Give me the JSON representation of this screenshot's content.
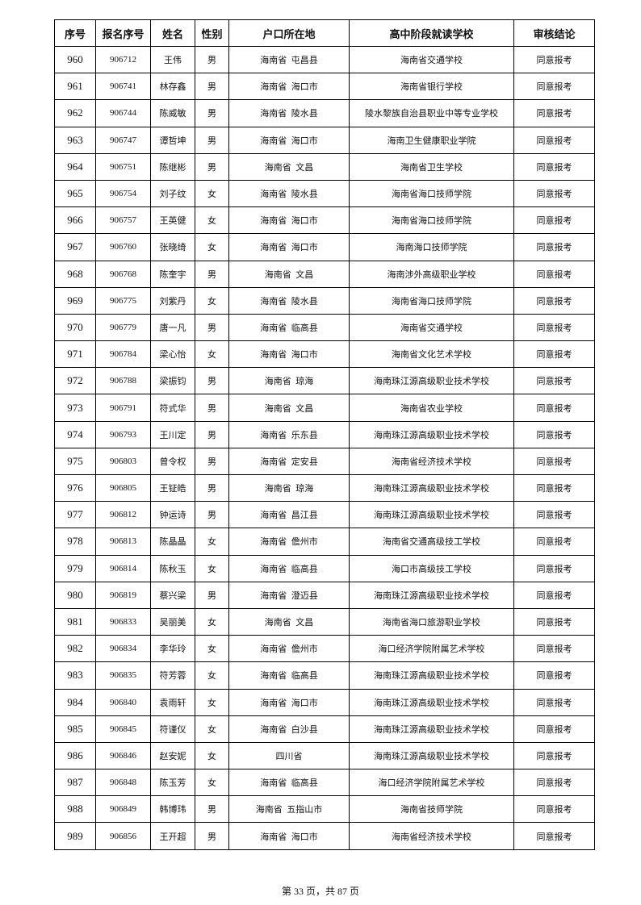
{
  "table": {
    "headers": [
      "序号",
      "报名序号",
      "姓名",
      "性别",
      "户口所在地",
      "高中阶段就读学校",
      "审核结论"
    ],
    "rows": [
      [
        "960",
        "906712",
        "王伟",
        "男",
        "海南省  屯昌县",
        "海南省交通学校",
        "同意报考"
      ],
      [
        "961",
        "906741",
        "林存鑫",
        "男",
        "海南省  海口市",
        "海南省银行学校",
        "同意报考"
      ],
      [
        "962",
        "906744",
        "陈威敏",
        "男",
        "海南省  陵水县",
        "陵水黎族自治县职业中等专业学校",
        "同意报考"
      ],
      [
        "963",
        "906747",
        "谭哲坤",
        "男",
        "海南省  海口市",
        "海南卫生健康职业学院",
        "同意报考"
      ],
      [
        "964",
        "906751",
        "陈继彬",
        "男",
        "海南省  文昌",
        "海南省卫生学校",
        "同意报考"
      ],
      [
        "965",
        "906754",
        "刘子纹",
        "女",
        "海南省  陵水县",
        "海南省海口技师学院",
        "同意报考"
      ],
      [
        "966",
        "906757",
        "王英健",
        "女",
        "海南省  海口市",
        "海南省海口技师学院",
        "同意报考"
      ],
      [
        "967",
        "906760",
        "张晓绮",
        "女",
        "海南省  海口市",
        "海南海口技师学院",
        "同意报考"
      ],
      [
        "968",
        "906768",
        "陈奎宇",
        "男",
        "海南省  文昌",
        "海南涉外高级职业学校",
        "同意报考"
      ],
      [
        "969",
        "906775",
        "刘紫丹",
        "女",
        "海南省  陵水县",
        "海南省海口技师学院",
        "同意报考"
      ],
      [
        "970",
        "906779",
        "唐一凡",
        "男",
        "海南省  临高县",
        "海南省交通学校",
        "同意报考"
      ],
      [
        "971",
        "906784",
        "梁心怡",
        "女",
        "海南省  海口市",
        "海南省文化艺术学校",
        "同意报考"
      ],
      [
        "972",
        "906788",
        "梁振钧",
        "男",
        "海南省  琼海",
        "海南珠江源高级职业技术学校",
        "同意报考"
      ],
      [
        "973",
        "906791",
        "符式华",
        "男",
        "海南省  文昌",
        "海南省农业学校",
        "同意报考"
      ],
      [
        "974",
        "906793",
        "王川定",
        "男",
        "海南省  乐东县",
        "海南珠江源高级职业技术学校",
        "同意报考"
      ],
      [
        "975",
        "906803",
        "曾令权",
        "男",
        "海南省  定安县",
        "海南省经济技术学校",
        "同意报考"
      ],
      [
        "976",
        "906805",
        "王钲皓",
        "男",
        "海南省  琼海",
        "海南珠江源高级职业技术学校",
        "同意报考"
      ],
      [
        "977",
        "906812",
        "钟运诗",
        "男",
        "海南省  昌江县",
        "海南珠江源高级职业技术学校",
        "同意报考"
      ],
      [
        "978",
        "906813",
        "陈晶晶",
        "女",
        "海南省  儋州市",
        "海南省交通高级技工学校",
        "同意报考"
      ],
      [
        "979",
        "906814",
        "陈秋玉",
        "女",
        "海南省  临高县",
        "海口市高级技工学校",
        "同意报考"
      ],
      [
        "980",
        "906819",
        "蔡兴梁",
        "男",
        "海南省  澄迈县",
        "海南珠江源高级职业技术学校",
        "同意报考"
      ],
      [
        "981",
        "906833",
        "吴丽美",
        "女",
        "海南省  文昌",
        "海南省海口旅游职业学校",
        "同意报考"
      ],
      [
        "982",
        "906834",
        "李华玲",
        "女",
        "海南省  儋州市",
        "海口经济学院附属艺术学校",
        "同意报考"
      ],
      [
        "983",
        "906835",
        "符芳蓉",
        "女",
        "海南省  临高县",
        "海南珠江源高级职业技术学校",
        "同意报考"
      ],
      [
        "984",
        "906840",
        "袁雨轩",
        "女",
        "海南省  海口市",
        "海南珠江源高级职业技术学校",
        "同意报考"
      ],
      [
        "985",
        "906845",
        "符谨仪",
        "女",
        "海南省  白沙县",
        "海南珠江源高级职业技术学校",
        "同意报考"
      ],
      [
        "986",
        "906846",
        "赵安妮",
        "女",
        "四川省",
        "海南珠江源高级职业技术学校",
        "同意报考"
      ],
      [
        "987",
        "906848",
        "陈玉芳",
        "女",
        "海南省  临高县",
        "海口经济学院附属艺术学校",
        "同意报考"
      ],
      [
        "988",
        "906849",
        "韩博玮",
        "男",
        "海南省  五指山市",
        "海南省技师学院",
        "同意报考"
      ],
      [
        "989",
        "906856",
        "王开超",
        "男",
        "海南省  海口市",
        "海南省经济技术学校",
        "同意报考"
      ]
    ]
  },
  "footer": {
    "page_label": "第 33 页，共 87 页"
  }
}
